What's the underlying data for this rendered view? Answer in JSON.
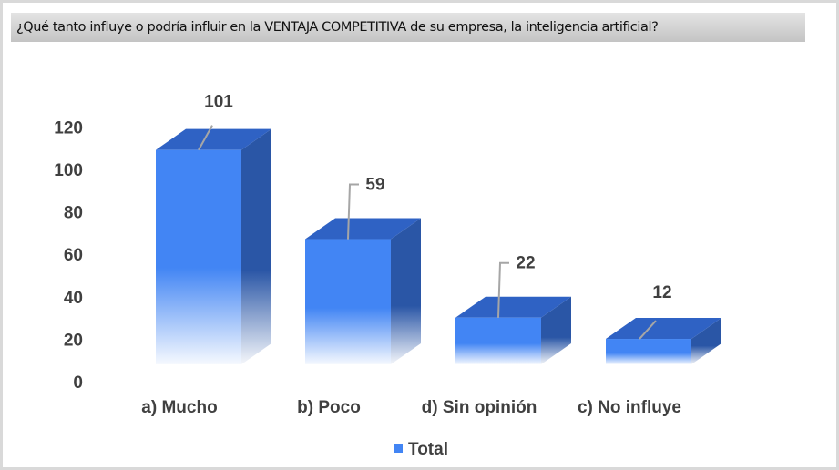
{
  "chart_data": {
    "type": "bar",
    "title": "¿Qué tanto influye o podría influir en la VENTAJA COMPETITIVA de su empresa, la inteligencia artificial?",
    "categories": [
      "a) Mucho",
      "b) Poco",
      "d) Sin opinión",
      "c) No influye"
    ],
    "series": [
      {
        "name": "Total",
        "values": [
          101,
          59,
          22,
          12
        ]
      }
    ],
    "data_labels": [
      "101",
      "59",
      "22",
      "12"
    ],
    "ylim": [
      0,
      120
    ],
    "yticks": [
      "0",
      "20",
      "40",
      "60",
      "80",
      "100",
      "120"
    ],
    "legend": "bottom",
    "grid": false,
    "colors": {
      "front": "#4285f4",
      "side": "#2a56a6",
      "top": "#2f62c4"
    }
  }
}
